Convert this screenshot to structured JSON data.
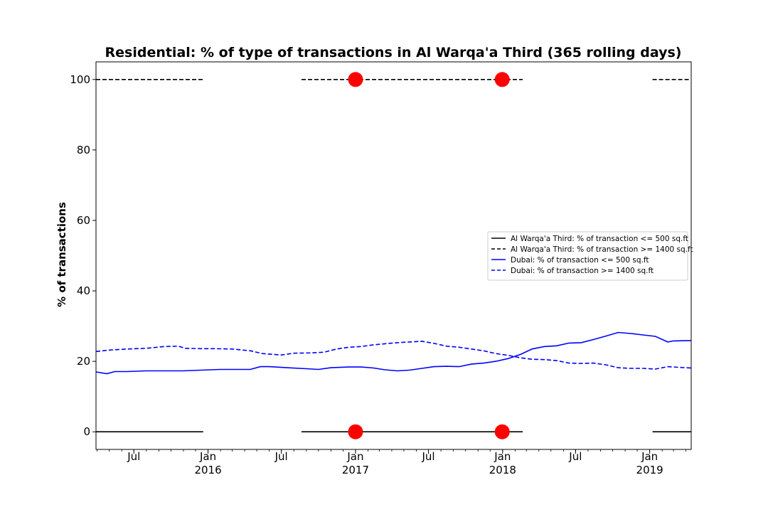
{
  "chart_data": {
    "type": "line",
    "title": "Residential: % of type of transactions in Al Warqa'a Third (365 rolling days)",
    "xlabel": "",
    "ylabel": "% of transactions",
    "xlim": [
      "2015-03-29",
      "2019-04-14"
    ],
    "ylim": [
      -5,
      105
    ],
    "yticks": [
      0,
      20,
      40,
      60,
      80,
      100
    ],
    "xticks": [
      {
        "date": "2015-07-01",
        "label": "Jul",
        "sublabel": ""
      },
      {
        "date": "2016-01-01",
        "label": "Jan",
        "sublabel": "2016"
      },
      {
        "date": "2016-07-01",
        "label": "Jul",
        "sublabel": ""
      },
      {
        "date": "2017-01-01",
        "label": "Jan",
        "sublabel": "2017"
      },
      {
        "date": "2017-07-01",
        "label": "Jul",
        "sublabel": ""
      },
      {
        "date": "2018-01-01",
        "label": "Jan",
        "sublabel": "2018"
      },
      {
        "date": "2018-07-01",
        "label": "Jul",
        "sublabel": ""
      },
      {
        "date": "2019-01-01",
        "label": "Jan",
        "sublabel": "2019"
      }
    ],
    "grid": false,
    "legend_position": "center-right",
    "series": [
      {
        "name": "Al Warqa'a Third: % of transaction <= 500 sq.ft",
        "color": "#000000",
        "style": "solid",
        "segments": [
          [
            [
              "2015-03-29",
              0
            ],
            [
              "2015-12-20",
              0
            ]
          ],
          [
            [
              "2016-08-20",
              0
            ],
            [
              "2018-02-20",
              0
            ]
          ],
          [
            [
              "2019-01-08",
              0
            ],
            [
              "2019-04-14",
              0
            ]
          ]
        ]
      },
      {
        "name": "Al Warqa'a Third: % of transaction >= 1400 sq.ft",
        "color": "#000000",
        "style": "dashed",
        "segments": [
          [
            [
              "2015-03-29",
              100
            ],
            [
              "2015-12-20",
              100
            ]
          ],
          [
            [
              "2016-08-20",
              100
            ],
            [
              "2018-02-20",
              100
            ]
          ],
          [
            [
              "2019-01-08",
              100
            ],
            [
              "2019-04-14",
              100
            ]
          ]
        ]
      },
      {
        "name": "Dubai: % of transaction <= 500 sq.ft",
        "color": "#0000ff",
        "style": "solid",
        "segments": [
          [
            [
              "2015-03-29",
              17.0
            ],
            [
              "2015-04-25",
              16.5
            ],
            [
              "2015-05-15",
              17.1
            ],
            [
              "2015-06-15",
              17.1
            ],
            [
              "2015-08-01",
              17.3
            ],
            [
              "2015-09-15",
              17.3
            ],
            [
              "2015-11-01",
              17.3
            ],
            [
              "2015-12-15",
              17.5
            ],
            [
              "2016-02-01",
              17.7
            ],
            [
              "2016-03-15",
              17.7
            ],
            [
              "2016-04-15",
              17.7
            ],
            [
              "2016-05-10",
              18.5
            ],
            [
              "2016-06-01",
              18.5
            ],
            [
              "2016-07-15",
              18.2
            ],
            [
              "2016-09-01",
              17.9
            ],
            [
              "2016-10-01",
              17.7
            ],
            [
              "2016-11-01",
              18.2
            ],
            [
              "2016-12-15",
              18.4
            ],
            [
              "2017-01-15",
              18.4
            ],
            [
              "2017-02-15",
              18.1
            ],
            [
              "2017-03-15",
              17.6
            ],
            [
              "2017-04-15",
              17.3
            ],
            [
              "2017-05-15",
              17.5
            ],
            [
              "2017-06-15",
              18.0
            ],
            [
              "2017-07-15",
              18.5
            ],
            [
              "2017-08-15",
              18.6
            ],
            [
              "2017-09-15",
              18.5
            ],
            [
              "2017-10-15",
              19.2
            ],
            [
              "2017-11-15",
              19.5
            ],
            [
              "2017-12-15",
              20.0
            ],
            [
              "2018-01-15",
              20.8
            ],
            [
              "2018-02-15",
              22.0
            ],
            [
              "2018-03-15",
              23.5
            ],
            [
              "2018-04-15",
              24.2
            ],
            [
              "2018-05-15",
              24.4
            ],
            [
              "2018-06-15",
              25.2
            ],
            [
              "2018-07-15",
              25.3
            ],
            [
              "2018-08-15",
              26.2
            ],
            [
              "2018-09-15",
              27.2
            ],
            [
              "2018-10-15",
              28.2
            ],
            [
              "2018-11-15",
              27.9
            ],
            [
              "2018-12-15",
              27.5
            ],
            [
              "2019-01-15",
              27.1
            ],
            [
              "2019-02-15",
              25.5
            ],
            [
              "2019-03-01",
              25.8
            ],
            [
              "2019-04-14",
              25.9
            ]
          ]
        ]
      },
      {
        "name": "Dubai: % of transaction >= 1400 sq.ft",
        "color": "#0000ff",
        "style": "dashed",
        "segments": [
          [
            [
              "2015-03-29",
              22.8
            ],
            [
              "2015-05-01",
              23.2
            ],
            [
              "2015-06-15",
              23.5
            ],
            [
              "2015-08-01",
              23.7
            ],
            [
              "2015-09-15",
              24.2
            ],
            [
              "2015-10-20",
              24.3
            ],
            [
              "2015-11-05",
              23.7
            ],
            [
              "2015-12-15",
              23.6
            ],
            [
              "2016-01-15",
              23.6
            ],
            [
              "2016-03-01",
              23.5
            ],
            [
              "2016-04-15",
              23.0
            ],
            [
              "2016-05-15",
              22.2
            ],
            [
              "2016-07-01",
              21.8
            ],
            [
              "2016-08-01",
              22.3
            ],
            [
              "2016-09-15",
              22.4
            ],
            [
              "2016-10-15",
              22.6
            ],
            [
              "2016-11-15",
              23.5
            ],
            [
              "2016-12-15",
              24.0
            ],
            [
              "2017-01-15",
              24.2
            ],
            [
              "2017-02-15",
              24.7
            ],
            [
              "2017-03-15",
              25.0
            ],
            [
              "2017-04-15",
              25.3
            ],
            [
              "2017-05-15",
              25.5
            ],
            [
              "2017-06-15",
              25.7
            ],
            [
              "2017-07-15",
              25.1
            ],
            [
              "2017-08-15",
              24.3
            ],
            [
              "2017-09-15",
              24.0
            ],
            [
              "2017-10-15",
              23.5
            ],
            [
              "2017-11-15",
              23.0
            ],
            [
              "2017-12-15",
              22.2
            ],
            [
              "2018-01-15",
              21.7
            ],
            [
              "2018-02-15",
              21.0
            ],
            [
              "2018-03-15",
              20.6
            ],
            [
              "2018-04-15",
              20.5
            ],
            [
              "2018-05-15",
              20.2
            ],
            [
              "2018-06-15",
              19.5
            ],
            [
              "2018-07-15",
              19.4
            ],
            [
              "2018-08-15",
              19.5
            ],
            [
              "2018-09-15",
              19.0
            ],
            [
              "2018-10-15",
              18.2
            ],
            [
              "2018-11-15",
              18.0
            ],
            [
              "2018-12-15",
              18.0
            ],
            [
              "2019-01-15",
              17.8
            ],
            [
              "2019-02-15",
              18.5
            ],
            [
              "2019-03-15",
              18.3
            ],
            [
              "2019-04-14",
              18.1
            ]
          ]
        ]
      }
    ],
    "markers": {
      "color": "#ff0000",
      "points": [
        [
          "2017-01-01",
          100
        ],
        [
          "2017-12-31",
          100
        ],
        [
          "2017-01-01",
          0
        ],
        [
          "2017-12-31",
          0
        ]
      ]
    }
  }
}
